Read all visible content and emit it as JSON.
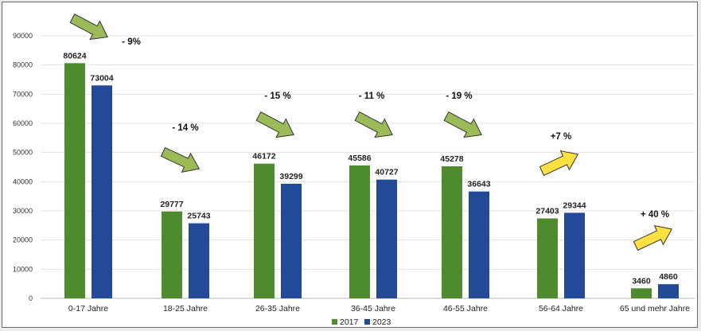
{
  "chart_data": {
    "type": "bar",
    "title": "",
    "xlabel": "",
    "ylabel": "",
    "ylim": [
      0,
      90000
    ],
    "yticks": [
      "0",
      "10000",
      "20000",
      "30000",
      "40000",
      "50000",
      "60000",
      "70000",
      "80000",
      "90000"
    ],
    "grid": true,
    "legend_position": "bottom",
    "categories": [
      "0-17 Jahre",
      "18-25 Jahre",
      "26-35 Jahre",
      "36-45 Jahre",
      "46-55 Jahre",
      "56-64 Jahre",
      "65 und mehr Jahre"
    ],
    "series": [
      {
        "name": "2017",
        "color": "#4e8a2e",
        "values": [
          80624,
          29777,
          46172,
          45586,
          45278,
          27403,
          3460
        ],
        "labels": [
          "80624",
          "29777",
          "46172",
          "45586",
          "45278",
          "27403",
          "3460"
        ]
      },
      {
        "name": "2023",
        "color": "#224a98",
        "values": [
          73004,
          25743,
          39299,
          40727,
          36643,
          29344,
          4860
        ],
        "labels": [
          "73004",
          "25743",
          "39299",
          "40727",
          "36643",
          "29344",
          "4860"
        ]
      }
    ],
    "annotations": [
      {
        "text": "- 9%",
        "arrow": "green"
      },
      {
        "text": "- 14 %",
        "arrow": "green"
      },
      {
        "text": "- 15 %",
        "arrow": "green"
      },
      {
        "text": "- 11 %",
        "arrow": "green"
      },
      {
        "text": "- 19 %",
        "arrow": "green"
      },
      {
        "text": "+7 %",
        "arrow": "yellow"
      },
      {
        "text": "+ 40 %",
        "arrow": "yellow"
      }
    ],
    "arrow_colors": {
      "green": "#9bbb59",
      "yellow": "#ffe040"
    }
  }
}
